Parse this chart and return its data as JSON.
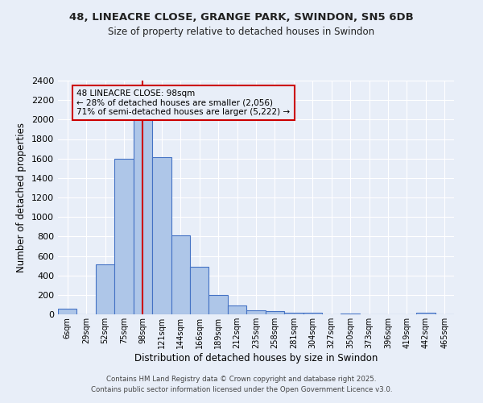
{
  "title1": "48, LINEACRE CLOSE, GRANGE PARK, SWINDON, SN5 6DB",
  "title2": "Size of property relative to detached houses in Swindon",
  "xlabel": "Distribution of detached houses by size in Swindon",
  "ylabel": "Number of detached properties",
  "footer1": "Contains HM Land Registry data © Crown copyright and database right 2025.",
  "footer2": "Contains public sector information licensed under the Open Government Licence v3.0.",
  "bin_labels": [
    "6sqm",
    "29sqm",
    "52sqm",
    "75sqm",
    "98sqm",
    "121sqm",
    "144sqm",
    "166sqm",
    "189sqm",
    "212sqm",
    "235sqm",
    "258sqm",
    "281sqm",
    "304sqm",
    "327sqm",
    "350sqm",
    "373sqm",
    "396sqm",
    "419sqm",
    "442sqm",
    "465sqm"
  ],
  "bin_values": [
    60,
    0,
    510,
    1600,
    2000,
    1610,
    810,
    490,
    195,
    90,
    45,
    30,
    20,
    15,
    0,
    12,
    0,
    0,
    0,
    20,
    0
  ],
  "bar_color": "#aec6e8",
  "bar_edge_color": "#4472c4",
  "bg_color": "#e8eef8",
  "grid_color": "#ffffff",
  "vline_x": 4,
  "vline_color": "#cc0000",
  "annotation_text": "48 LINEACRE CLOSE: 98sqm\n← 28% of detached houses are smaller (2,056)\n71% of semi-detached houses are larger (5,222) →",
  "annotation_box_color": "#cc0000",
  "ylim": [
    0,
    2400
  ],
  "yticks": [
    0,
    200,
    400,
    600,
    800,
    1000,
    1200,
    1400,
    1600,
    1800,
    2000,
    2200,
    2400
  ]
}
